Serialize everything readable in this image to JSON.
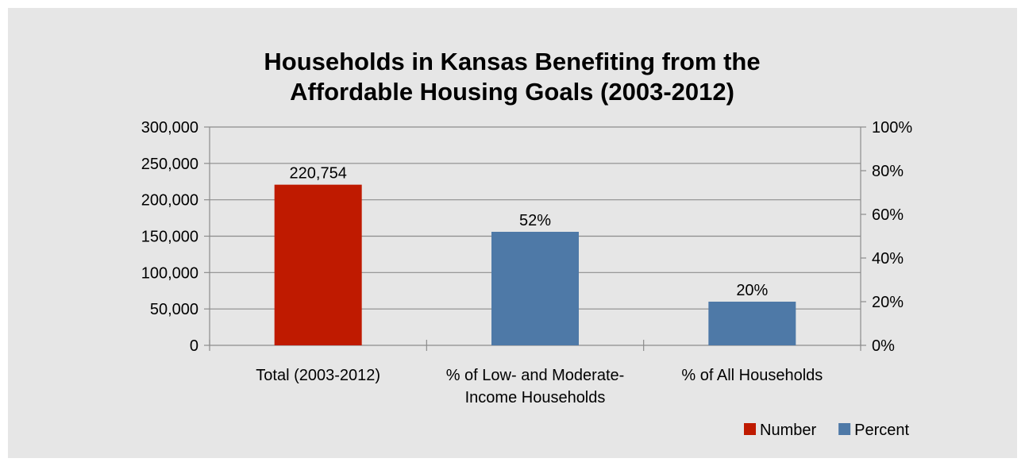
{
  "chart_data": {
    "type": "bar",
    "title": [
      "Households in Kansas Benefiting from the",
      "Affordable Housing Goals (2003-2012)"
    ],
    "categories": [
      [
        "Total (2003-2012)"
      ],
      [
        "% of Low- and Moderate-",
        "Income Households"
      ],
      [
        "% of All Households"
      ]
    ],
    "series": [
      {
        "name": "Number",
        "axis": "left",
        "color": "#bf1a00",
        "values": [
          220754,
          null,
          null
        ],
        "labels": [
          "220,754",
          null,
          null
        ]
      },
      {
        "name": "Percent",
        "axis": "right",
        "color": "#4e79a7",
        "values": [
          null,
          52,
          20
        ],
        "labels": [
          null,
          "52%",
          "20%"
        ]
      }
    ],
    "y_left": {
      "range": [
        0,
        300000
      ],
      "ticks": [
        0,
        50000,
        100000,
        150000,
        200000,
        250000,
        300000
      ],
      "tick_labels": [
        "0",
        "50,000",
        "100,000",
        "150,000",
        "200,000",
        "250,000",
        "300,000"
      ]
    },
    "y_right": {
      "range": [
        0,
        100
      ],
      "ticks": [
        0,
        20,
        40,
        60,
        80,
        100
      ],
      "tick_labels": [
        "0%",
        "20%",
        "40%",
        "60%",
        "80%",
        "100%"
      ]
    },
    "grid": "horizontal",
    "legend_position": "bottom-right",
    "background": "#e6e6e6"
  }
}
